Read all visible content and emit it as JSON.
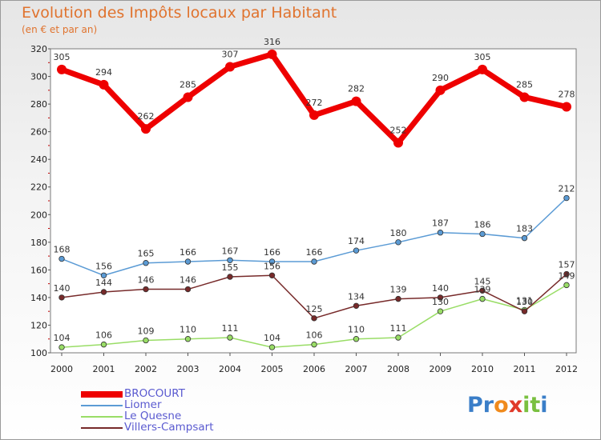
{
  "title": "Evolution des Impôts locaux par Habitant",
  "subtitle": "(en € et par an)",
  "logo": {
    "text": "Proxiti",
    "letters": [
      "P",
      "r",
      "o",
      "x",
      "i",
      "t",
      "i"
    ]
  },
  "chart_data": {
    "type": "line",
    "x": [
      "2000",
      "2001",
      "2002",
      "2003",
      "2004",
      "2005",
      "2006",
      "2007",
      "2008",
      "2009",
      "2010",
      "2011",
      "2012"
    ],
    "ylim": [
      100,
      320
    ],
    "yticks": [
      100,
      120,
      140,
      160,
      180,
      200,
      220,
      240,
      260,
      280,
      300,
      320
    ],
    "grid": false,
    "legend_position": "bottom-left",
    "series": [
      {
        "name": "BROCOURT",
        "color": "#ee0000",
        "values": [
          305,
          294,
          262,
          285,
          307,
          316,
          272,
          282,
          252,
          290,
          305,
          285,
          278
        ]
      },
      {
        "name": "Liomer",
        "color": "#5b9bd5",
        "values": [
          168,
          156,
          165,
          166,
          167,
          166,
          166,
          174,
          180,
          187,
          186,
          183,
          212
        ]
      },
      {
        "name": "Le Quesne",
        "color": "#99dd66",
        "values": [
          104,
          106,
          109,
          110,
          111,
          104,
          106,
          110,
          111,
          130,
          139,
          131,
          149
        ]
      },
      {
        "name": "Villers-Campsart",
        "color": "#772a2a",
        "values": [
          140,
          144,
          146,
          146,
          155,
          156,
          125,
          134,
          139,
          140,
          145,
          130,
          157
        ]
      }
    ]
  }
}
